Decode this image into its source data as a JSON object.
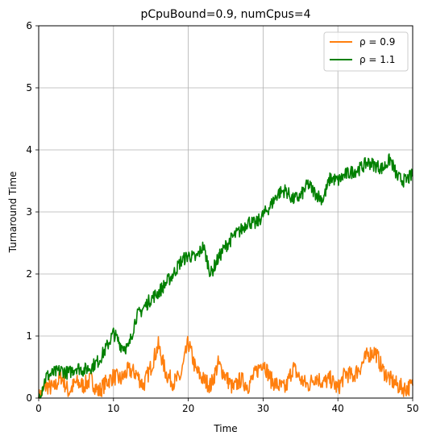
{
  "chart_data": {
    "type": "line",
    "title": "pCpuBound=0.9, numCpus=4",
    "xlabel": "Time",
    "ylabel": "Turnaround Time",
    "xlim": [
      0,
      50
    ],
    "ylim": [
      0,
      6
    ],
    "xticks": [
      0,
      10,
      20,
      30,
      40,
      50
    ],
    "yticks": [
      0,
      1,
      2,
      3,
      4,
      5,
      6
    ],
    "grid": true,
    "legend_position": "top-right",
    "series": [
      {
        "name": "ρ = 0.9",
        "color": "#ff7f0e",
        "x": [
          0,
          1,
          2,
          3,
          4,
          5,
          6,
          7,
          8,
          9,
          10,
          11,
          12,
          13,
          14,
          15,
          16,
          17,
          18,
          19,
          20,
          21,
          22,
          23,
          24,
          25,
          26,
          27,
          28,
          29,
          30,
          31,
          32,
          33,
          34,
          35,
          36,
          37,
          38,
          39,
          40,
          41,
          42,
          43,
          44,
          45,
          46,
          47,
          48,
          49,
          50
        ],
        "y": [
          0.0,
          0.2,
          0.15,
          0.35,
          0.1,
          0.25,
          0.2,
          0.3,
          0.1,
          0.25,
          0.35,
          0.3,
          0.45,
          0.4,
          0.2,
          0.5,
          0.85,
          0.4,
          0.25,
          0.35,
          0.9,
          0.45,
          0.3,
          0.2,
          0.55,
          0.35,
          0.15,
          0.3,
          0.2,
          0.4,
          0.6,
          0.3,
          0.2,
          0.15,
          0.5,
          0.3,
          0.2,
          0.35,
          0.25,
          0.3,
          0.15,
          0.4,
          0.35,
          0.5,
          0.7,
          0.75,
          0.45,
          0.3,
          0.2,
          0.15,
          0.2
        ]
      },
      {
        "name": "ρ = 1.1",
        "color": "#008000",
        "x": [
          0,
          1,
          2,
          3,
          4,
          5,
          6,
          7,
          8,
          9,
          10,
          11,
          12,
          13,
          14,
          15,
          16,
          17,
          18,
          19,
          20,
          21,
          22,
          23,
          24,
          25,
          26,
          27,
          28,
          29,
          30,
          31,
          32,
          33,
          34,
          35,
          36,
          37,
          38,
          39,
          40,
          41,
          42,
          43,
          44,
          45,
          46,
          47,
          48,
          49,
          50
        ],
        "y": [
          0.0,
          0.35,
          0.4,
          0.45,
          0.4,
          0.5,
          0.45,
          0.5,
          0.6,
          0.8,
          1.05,
          0.85,
          0.8,
          1.3,
          1.45,
          1.6,
          1.7,
          1.85,
          2.0,
          2.2,
          2.3,
          2.25,
          2.45,
          2.0,
          2.25,
          2.45,
          2.6,
          2.7,
          2.85,
          2.8,
          2.95,
          3.1,
          3.3,
          3.35,
          3.2,
          3.25,
          3.45,
          3.3,
          3.2,
          3.55,
          3.5,
          3.6,
          3.65,
          3.7,
          3.8,
          3.75,
          3.7,
          3.85,
          3.55,
          3.5,
          3.6
        ]
      }
    ]
  }
}
